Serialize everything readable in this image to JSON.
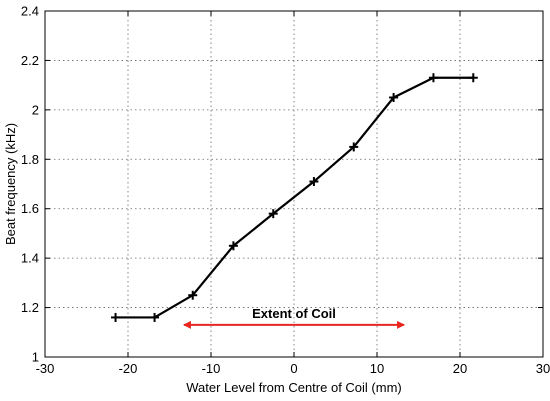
{
  "chart_data": {
    "type": "line",
    "xlabel": "Water Level from Centre of Coil (mm)",
    "ylabel": "Beat frequency (kHz)",
    "xlim": [
      -30,
      30
    ],
    "ylim": [
      1,
      2.4
    ],
    "xticks": [
      -30,
      -20,
      -10,
      0,
      10,
      20,
      30
    ],
    "yticks": [
      1,
      1.2,
      1.4,
      1.6,
      1.8,
      2,
      2.2,
      2.4
    ],
    "grid": true,
    "legend": "none",
    "series": [
      {
        "color": "#000000",
        "marker": "plus",
        "points": [
          {
            "x": -21.5,
            "y": 1.16
          },
          {
            "x": -16.8,
            "y": 1.16
          },
          {
            "x": -12.2,
            "y": 1.25
          },
          {
            "x": -7.3,
            "y": 1.45
          },
          {
            "x": -2.5,
            "y": 1.58
          },
          {
            "x": 2.4,
            "y": 1.71
          },
          {
            "x": 7.2,
            "y": 1.85
          },
          {
            "x": 12.0,
            "y": 2.05
          },
          {
            "x": 16.8,
            "y": 2.13
          },
          {
            "x": 21.6,
            "y": 2.13
          }
        ]
      }
    ],
    "annotations": [
      {
        "text": "Extent of Coil",
        "type": "double-arrow",
        "color": "#e8261f",
        "x_start": -13.5,
        "x_end": 13.5,
        "y": 1.13,
        "text_y": 1.175
      }
    ]
  }
}
